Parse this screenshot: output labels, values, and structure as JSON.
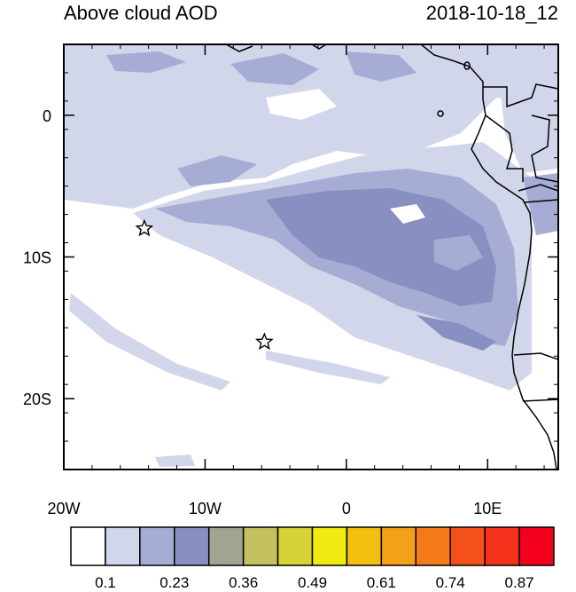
{
  "title": "Above cloud AOD",
  "timestamp": "2018-10-18_12",
  "map": {
    "lon_range": [
      -20,
      15
    ],
    "lat_range": [
      -25,
      5
    ],
    "x_ticks": [
      {
        "label": "20W",
        "lon": -20
      },
      {
        "label": "10W",
        "lon": -10
      },
      {
        "label": "0",
        "lon": 0
      },
      {
        "label": "10E",
        "lon": 10
      }
    ],
    "y_ticks": [
      {
        "label": "0",
        "lat": 0
      },
      {
        "label": "10S",
        "lat": -10
      },
      {
        "label": "20S",
        "lat": -20
      }
    ],
    "markers": [
      {
        "name": "star-marker-1",
        "lon": -14.3,
        "lat": -8.0
      },
      {
        "name": "star-marker-2",
        "lon": -5.8,
        "lat": -16.0
      }
    ]
  },
  "colorbar": {
    "colors": [
      "#ffffff",
      "#d2d6ea",
      "#a6acd4",
      "#8790c0",
      "#a0a490",
      "#c4c060",
      "#d6d238",
      "#f0ea10",
      "#f4c010",
      "#f4a018",
      "#f47c18",
      "#f4501a",
      "#f4321c",
      "#f4001c"
    ],
    "labels": [
      "0.1",
      "0.23",
      "0.36",
      "0.49",
      "0.61",
      "0.74",
      "0.87"
    ]
  }
}
